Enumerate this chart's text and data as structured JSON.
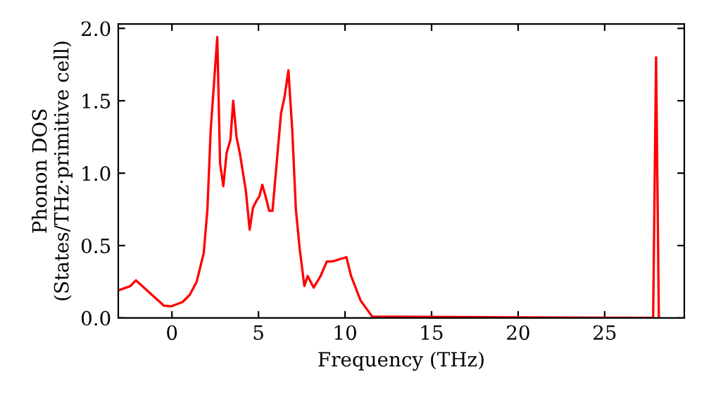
{
  "chart_data": {
    "type": "line",
    "xlabel": "Frequency (THz)",
    "ylabel": "Phonon DOS\n(States/THz·primitive cell)",
    "series": [
      {
        "color": "#ff0000",
        "x": [
          -3.1,
          -2.4,
          -2.08,
          -0.46,
          -0.05,
          0.62,
          1.03,
          1.43,
          1.84,
          2.05,
          2.24,
          2.62,
          2.78,
          2.97,
          3.16,
          3.38,
          3.54,
          3.73,
          3.92,
          4.27,
          4.49,
          4.68,
          4.89,
          5.05,
          5.22,
          5.41,
          5.62,
          5.81,
          6.03,
          6.3,
          6.51,
          6.73,
          6.95,
          7.16,
          7.38,
          7.65,
          7.84,
          8.19,
          8.59,
          8.95,
          9.27,
          10.08,
          10.35,
          10.9,
          11.57,
          27.8,
          27.97,
          28.13
        ],
        "values": [
          0.19,
          0.22,
          0.26,
          0.085,
          0.08,
          0.11,
          0.16,
          0.25,
          0.45,
          0.75,
          1.3,
          1.94,
          1.07,
          0.91,
          1.14,
          1.23,
          1.5,
          1.25,
          1.14,
          0.88,
          0.61,
          0.76,
          0.81,
          0.84,
          0.92,
          0.84,
          0.74,
          0.74,
          1.04,
          1.41,
          1.53,
          1.71,
          1.3,
          0.75,
          0.48,
          0.22,
          0.29,
          0.21,
          0.29,
          0.39,
          0.39,
          0.42,
          0.29,
          0.12,
          0.01,
          0,
          1.8,
          0
        ]
      }
    ],
    "xlim": [
      -3.1,
      29.6
    ],
    "ylim": [
      0,
      2.03
    ],
    "xticks": [
      0,
      5,
      10,
      15,
      20,
      25
    ],
    "yticks": [
      {
        "value": 0,
        "label": "0.0"
      },
      {
        "value": 0.5,
        "label": "0.5"
      },
      {
        "value": 1,
        "label": "1.0"
      },
      {
        "value": 1.5,
        "label": "1.5"
      },
      {
        "value": 2,
        "label": "2.0"
      }
    ],
    "grid": false,
    "legend": false,
    "marker": "none",
    "line_style": "solid"
  }
}
